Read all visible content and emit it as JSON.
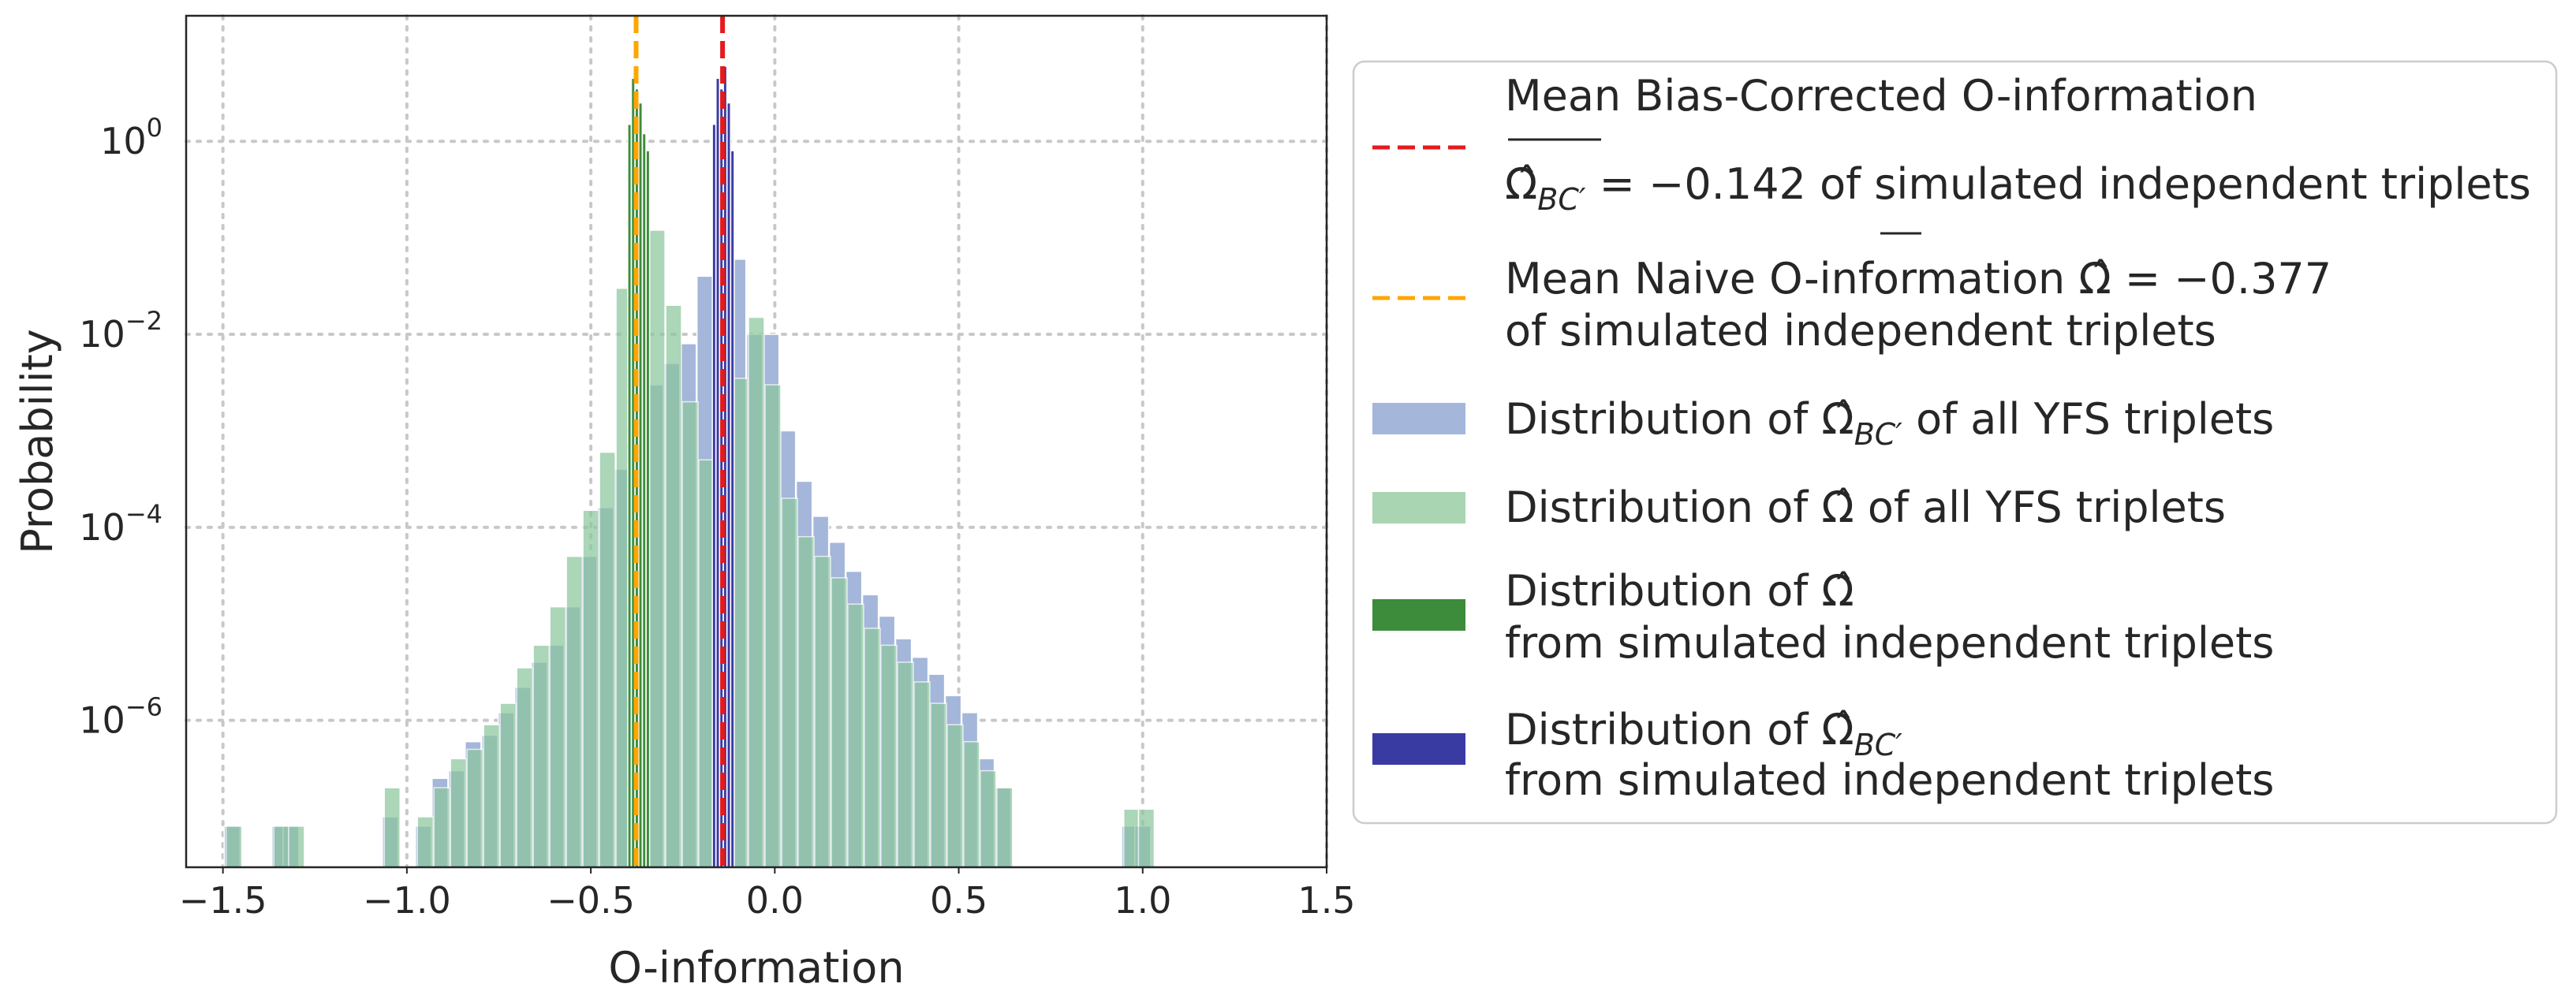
{
  "chart_data": {
    "type": "bar",
    "title": "",
    "xlabel": "O-information",
    "ylabel": "Probability",
    "xlim": [
      -1.6,
      1.5
    ],
    "ylim": [
      3e-08,
      20
    ],
    "yscale": "log",
    "grid": true,
    "x_ticks": [
      -1.5,
      -1.0,
      -0.5,
      0.0,
      0.5,
      1.0,
      1.5
    ],
    "x_tick_labels": [
      "−1.5",
      "−1.0",
      "−0.5",
      "0.0",
      "0.5",
      "1.0",
      "1.5"
    ],
    "y_ticks": [
      1e-06,
      0.0001,
      0.01,
      1
    ],
    "y_tick_labels": [
      {
        "base": "10",
        "exp": "−6"
      },
      {
        "base": "10",
        "exp": "−4"
      },
      {
        "base": "10",
        "exp": "−2"
      },
      {
        "base": "10",
        "exp": "0"
      }
    ],
    "legend_placement": "outside-right",
    "lines": [
      {
        "name": "mean-bc",
        "x": -0.142,
        "color": "#e41a1c",
        "style": "dashed"
      },
      {
        "name": "mean-naive",
        "x": -0.377,
        "color": "#ffa500",
        "style": "dashed"
      }
    ],
    "series": [
      {
        "name": "bc-yfs",
        "color": "#a4b6d9",
        "opacity": 1,
        "bin_width": 0.043,
        "bins": [
          {
            "x": -1.475,
            "y": 8e-08
          },
          {
            "x": -1.345,
            "y": 8e-08
          },
          {
            "x": -1.315,
            "y": 8e-08
          },
          {
            "x": -1.045,
            "y": 1e-07
          },
          {
            "x": -0.955,
            "y": 8e-08
          },
          {
            "x": -0.91,
            "y": 2.5e-07
          },
          {
            "x": -0.865,
            "y": 3e-07
          },
          {
            "x": -0.82,
            "y": 6e-07
          },
          {
            "x": -0.775,
            "y": 7e-07
          },
          {
            "x": -0.73,
            "y": 1.2e-06
          },
          {
            "x": -0.685,
            "y": 2.2e-06
          },
          {
            "x": -0.64,
            "y": 4e-06
          },
          {
            "x": -0.595,
            "y": 6e-06
          },
          {
            "x": -0.55,
            "y": 1.5e-05
          },
          {
            "x": -0.505,
            "y": 5e-05
          },
          {
            "x": -0.46,
            "y": 0.00016
          },
          {
            "x": -0.415,
            "y": 0.0004
          },
          {
            "x": -0.37,
            "y": 0.0009
          },
          {
            "x": -0.325,
            "y": 0.003
          },
          {
            "x": -0.28,
            "y": 0.005
          },
          {
            "x": -0.235,
            "y": 0.008
          },
          {
            "x": -0.19,
            "y": 0.04
          },
          {
            "x": -0.145,
            "y": 0.05
          },
          {
            "x": -0.1,
            "y": 0.06
          },
          {
            "x": -0.055,
            "y": 0.01
          },
          {
            "x": -0.01,
            "y": 0.01
          },
          {
            "x": 0.035,
            "y": 0.001
          },
          {
            "x": 0.08,
            "y": 0.0003
          },
          {
            "x": 0.125,
            "y": 0.00013
          },
          {
            "x": 0.17,
            "y": 7e-05
          },
          {
            "x": 0.215,
            "y": 3.5e-05
          },
          {
            "x": 0.26,
            "y": 2e-05
          },
          {
            "x": 0.305,
            "y": 1.2e-05
          },
          {
            "x": 0.35,
            "y": 7e-06
          },
          {
            "x": 0.395,
            "y": 4.5e-06
          },
          {
            "x": 0.44,
            "y": 3e-06
          },
          {
            "x": 0.485,
            "y": 1.8e-06
          },
          {
            "x": 0.53,
            "y": 1.2e-06
          },
          {
            "x": 0.575,
            "y": 4e-07
          },
          {
            "x": 0.62,
            "y": 2e-07
          },
          {
            "x": 0.965,
            "y": 8e-08
          },
          {
            "x": 1.0,
            "y": 8e-08
          }
        ]
      },
      {
        "name": "naive-yfs",
        "color": "#8cc79e",
        "opacity": 0.72,
        "bin_width": 0.043,
        "bins": [
          {
            "x": -1.47,
            "y": 8e-08
          },
          {
            "x": -1.34,
            "y": 8e-08
          },
          {
            "x": -1.3,
            "y": 8e-08
          },
          {
            "x": -1.04,
            "y": 2e-07
          },
          {
            "x": -0.95,
            "y": 1e-07
          },
          {
            "x": -0.905,
            "y": 2e-07
          },
          {
            "x": -0.86,
            "y": 4e-07
          },
          {
            "x": -0.815,
            "y": 5e-07
          },
          {
            "x": -0.77,
            "y": 9e-07
          },
          {
            "x": -0.725,
            "y": 1.5e-06
          },
          {
            "x": -0.68,
            "y": 3.5e-06
          },
          {
            "x": -0.635,
            "y": 6e-06
          },
          {
            "x": -0.59,
            "y": 1.5e-05
          },
          {
            "x": -0.545,
            "y": 5e-05
          },
          {
            "x": -0.5,
            "y": 0.00015
          },
          {
            "x": -0.455,
            "y": 0.0006
          },
          {
            "x": -0.41,
            "y": 0.03
          },
          {
            "x": -0.365,
            "y": 0.25
          },
          {
            "x": -0.32,
            "y": 0.12
          },
          {
            "x": -0.275,
            "y": 0.02
          },
          {
            "x": -0.23,
            "y": 0.002
          },
          {
            "x": -0.185,
            "y": 0.0005
          },
          {
            "x": -0.14,
            "y": 0.0003
          },
          {
            "x": -0.095,
            "y": 0.0035
          },
          {
            "x": -0.05,
            "y": 0.015
          },
          {
            "x": -0.005,
            "y": 0.003
          },
          {
            "x": 0.04,
            "y": 0.0002
          },
          {
            "x": 0.085,
            "y": 8e-05
          },
          {
            "x": 0.13,
            "y": 5e-05
          },
          {
            "x": 0.175,
            "y": 3e-05
          },
          {
            "x": 0.22,
            "y": 1.6e-05
          },
          {
            "x": 0.265,
            "y": 9e-06
          },
          {
            "x": 0.31,
            "y": 6e-06
          },
          {
            "x": 0.355,
            "y": 4e-06
          },
          {
            "x": 0.4,
            "y": 2.5e-06
          },
          {
            "x": 0.445,
            "y": 1.5e-06
          },
          {
            "x": 0.49,
            "y": 9e-07
          },
          {
            "x": 0.535,
            "y": 6e-07
          },
          {
            "x": 0.58,
            "y": 3e-07
          },
          {
            "x": 0.625,
            "y": 2e-07
          },
          {
            "x": 0.97,
            "y": 1.2e-07
          },
          {
            "x": 1.01,
            "y": 1.2e-07
          }
        ]
      },
      {
        "name": "naive-sim",
        "color": "#3c8c3c",
        "opacity": 1,
        "bin_width": 0.0095,
        "bins": [
          {
            "x": -0.395,
            "y": 1.5
          },
          {
            "x": -0.385,
            "y": 4.5
          },
          {
            "x": -0.375,
            "y": 3.5
          },
          {
            "x": -0.365,
            "y": 2.5
          },
          {
            "x": -0.355,
            "y": 1.2
          },
          {
            "x": -0.345,
            "y": 0.8
          }
        ]
      },
      {
        "name": "bc-sim",
        "color": "#3a3aa3",
        "opacity": 1,
        "bin_width": 0.0095,
        "bins": [
          {
            "x": -0.165,
            "y": 1.5
          },
          {
            "x": -0.155,
            "y": 4.5
          },
          {
            "x": -0.145,
            "y": 3.5
          },
          {
            "x": -0.135,
            "y": 6
          },
          {
            "x": -0.125,
            "y": 2.5
          },
          {
            "x": -0.115,
            "y": 0.8
          }
        ]
      }
    ],
    "legend": [
      {
        "key": "mean-bc",
        "marker": "dashed",
        "color": "#e41a1c",
        "line1": "Mean Bias-Corrected O-information",
        "line2_sym": "Ω̂",
        "line2_sub": "BC′",
        "line2_rest": " = −0.142 of simulated independent triplets"
      },
      {
        "key": "mean-naive",
        "marker": "dashed",
        "color": "#ffa500",
        "line1_pre": "Mean Naive O-information ",
        "line1_sym": "Ω̂",
        "line1_rest": " = −0.377",
        "line2": " of simulated independent triplets"
      },
      {
        "key": "bc-yfs",
        "marker": "patch",
        "color": "#a4b6d9",
        "pre": "Distribution of ",
        "sym": "Ω̂",
        "sub": "BC′",
        "rest": " of all YFS triplets"
      },
      {
        "key": "naive-yfs",
        "marker": "patch",
        "color": "#a9d5b2",
        "pre": "Distribution of ",
        "sym": "Ω̂",
        "rest": " of all YFS triplets"
      },
      {
        "key": "naive-sim",
        "marker": "patch",
        "color": "#3c8c3c",
        "pre": "Distribution of ",
        "sym": "Ω̂",
        "line2": " from simulated independent triplets"
      },
      {
        "key": "bc-sim",
        "marker": "patch",
        "color": "#3a3aa3",
        "pre": "Distribution of ",
        "sym": "Ω̂",
        "sub": "BC′",
        "line2": " from simulated independent triplets"
      }
    ]
  }
}
